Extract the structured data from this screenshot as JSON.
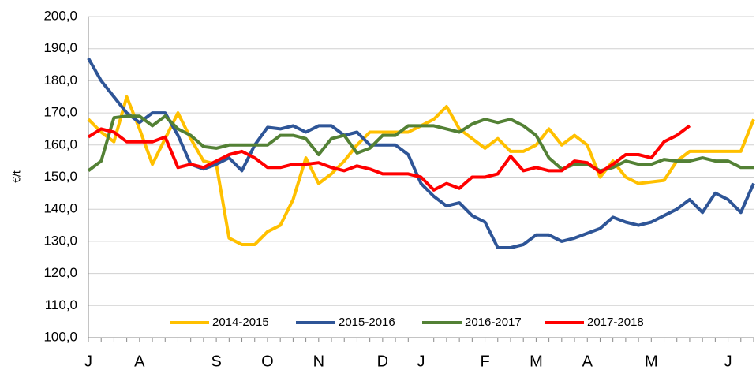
{
  "chart_data": {
    "type": "line",
    "y_label": "€/t",
    "categories": [
      "J",
      null,
      null,
      null,
      "A",
      null,
      null,
      null,
      null,
      null,
      "S",
      null,
      null,
      null,
      "O",
      null,
      null,
      null,
      "N",
      null,
      null,
      null,
      null,
      "D",
      null,
      null,
      "J",
      null,
      null,
      null,
      null,
      "F",
      null,
      null,
      null,
      "M",
      null,
      null,
      null,
      "A",
      null,
      null,
      null,
      null,
      "M",
      null,
      null,
      null,
      null,
      null,
      "J",
      null,
      null
    ],
    "series": [
      {
        "name": "2014-2015",
        "color": "#ffc000",
        "values": [
          168,
          164,
          161,
          175,
          165,
          154,
          162,
          170,
          162,
          155,
          154,
          131,
          129,
          129,
          133,
          135,
          143,
          156,
          148,
          151,
          155,
          160,
          164,
          164,
          164,
          164,
          166,
          168,
          172,
          165,
          162,
          159,
          162,
          158,
          158,
          160,
          165,
          160,
          163,
          160,
          150,
          155,
          150,
          148,
          148.5,
          149,
          155,
          158,
          158,
          158,
          158,
          158,
          168
        ]
      },
      {
        "name": "2015-2016",
        "color": "#2e5597",
        "values": [
          187,
          180,
          175,
          170,
          167,
          170,
          170,
          163,
          154,
          152.5,
          154,
          156,
          152,
          160,
          165.5,
          165,
          166,
          164,
          166,
          166,
          163,
          164,
          160,
          160,
          160,
          157,
          148,
          144,
          141,
          142,
          138,
          136,
          128,
          128,
          129,
          132,
          132,
          130,
          131,
          132.5,
          134,
          137.5,
          136,
          135,
          136,
          138,
          140,
          143,
          139,
          145,
          143,
          139,
          148
        ]
      },
      {
        "name": "2016-2017",
        "color": "#538135",
        "values": [
          152,
          155,
          168.5,
          169,
          169,
          166,
          169,
          165,
          163,
          159.5,
          159,
          160,
          160,
          160,
          160,
          163,
          163,
          162,
          157,
          162,
          163,
          157.5,
          159,
          163,
          163,
          166,
          166,
          166,
          165,
          164,
          166.5,
          168,
          167,
          168,
          166,
          163,
          156,
          152.5,
          154,
          154,
          152,
          153,
          155,
          154,
          154,
          155.5,
          155,
          155,
          156,
          155,
          155,
          153,
          153
        ]
      },
      {
        "name": "2017-2018",
        "color": "#ff0000",
        "values": [
          162.5,
          165,
          164,
          161,
          161,
          161,
          162.5,
          153,
          154,
          153,
          155,
          157,
          158,
          156,
          153,
          153,
          154,
          154,
          154.5,
          153,
          152,
          153.5,
          152.5,
          151,
          151,
          151,
          150,
          146,
          148,
          146.5,
          150,
          150,
          151,
          156.5,
          152,
          153,
          152,
          152,
          155,
          154.5,
          151.5,
          154,
          157,
          157,
          156,
          161,
          163,
          166,
          null,
          null,
          null,
          null,
          null
        ]
      }
    ],
    "ylim": [
      100,
      200
    ],
    "yticks": [
      {
        "value": 100,
        "label": "100,0"
      },
      {
        "value": 110,
        "label": "110,0"
      },
      {
        "value": 120,
        "label": "120,0"
      },
      {
        "value": 130,
        "label": "130,0"
      },
      {
        "value": 140,
        "label": "140,0"
      },
      {
        "value": 150,
        "label": "150,0"
      },
      {
        "value": 160,
        "label": "160,0"
      },
      {
        "value": 170,
        "label": "170,0"
      },
      {
        "value": 180,
        "label": "180,0"
      },
      {
        "value": 190,
        "label": "190,0"
      },
      {
        "value": 200,
        "label": "200,0"
      }
    ],
    "grid": true,
    "legend": "bottom"
  }
}
